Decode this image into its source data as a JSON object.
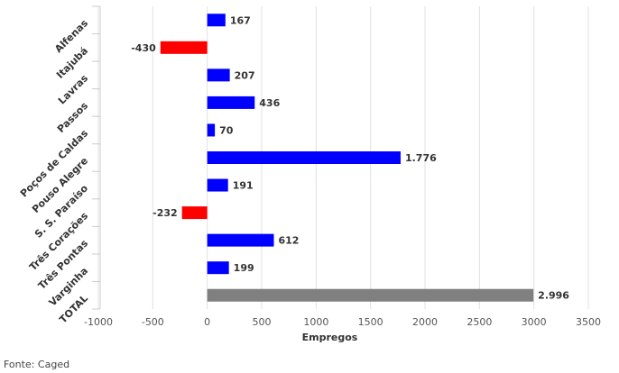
{
  "chart_data": {
    "type": "bar",
    "orientation": "horizontal",
    "title": "",
    "xlabel": "Empregos",
    "ylabel": "",
    "xlim": [
      -1000,
      3500
    ],
    "xticks": [
      -1000,
      -500,
      0,
      500,
      1000,
      1500,
      2000,
      2500,
      3000,
      3500
    ],
    "xtick_labels": [
      "-1000",
      "-500",
      "0",
      "500",
      "1000",
      "1500",
      "2000",
      "2500",
      "3000",
      "3500"
    ],
    "grid": true,
    "categories": [
      "Alfenas",
      "Itajubá",
      "Lavras",
      "Passos",
      "Poços de Caldas",
      "Pouso Alegre",
      "S. S. Paraíso",
      "Três Corações",
      "Três Pontas",
      "Varginha",
      "TOTAL"
    ],
    "values": [
      167,
      -430,
      207,
      436,
      70,
      1776,
      191,
      -232,
      612,
      199,
      2996
    ],
    "value_labels": [
      "167",
      "-430",
      "207",
      "436",
      "70",
      "1.776",
      "191",
      "-232",
      "612",
      "199",
      "2.996"
    ],
    "colors": {
      "positive": "#0000ff",
      "negative": "#ff0000",
      "total": "#808080",
      "grid": "#e0e0e0",
      "text": "#333333"
    }
  },
  "source": "Fonte: Caged"
}
